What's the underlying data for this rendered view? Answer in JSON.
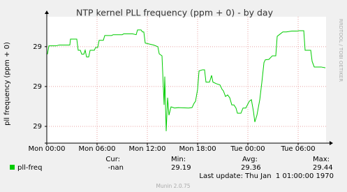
{
  "chart_data": {
    "type": "line",
    "title": "NTP kernel PLL frequency (ppm + 0) - by day",
    "y_label": "pll frequency (ppm + 0)",
    "watermark": "RRDTOOL / TOBI OETIKER",
    "x": [
      0.08,
      0.25,
      1.08,
      1.5,
      2.75,
      2.83,
      3.58,
      3.75,
      4,
      4.17,
      4.42,
      4.58,
      4.75,
      5,
      5.17,
      5.67,
      5.83,
      6.08,
      6.25,
      6.75,
      6.92,
      7.75,
      7.92,
      9,
      9.17,
      10.25,
      10.67,
      10.83,
      11.25,
      11.42,
      11.58,
      11.75,
      12.75,
      13.25,
      13.42,
      13.75,
      14,
      14.08,
      14.25,
      14.42,
      14.58,
      14.83,
      15.25,
      15.67,
      16.92,
      17.33,
      17.58,
      17.75,
      18,
      18.17,
      18.58,
      18.83,
      19,
      19.42,
      19.67,
      19.83,
      20.25,
      20.67,
      20.92,
      21.08,
      21.33,
      21.58,
      21.83,
      22.08,
      22.33,
      22.58,
      22.75,
      23.17,
      23.42,
      23.75,
      24.17,
      24.42,
      24.67,
      24.83,
      25.08,
      25.42,
      25.67,
      25.92,
      26.08,
      26.5,
      26.92,
      27.33,
      27.5,
      27.75,
      28.17,
      28.58,
      29.25,
      29.83,
      30.08,
      30.67,
      30.83,
      31.5,
      31.67,
      31.92,
      32.75,
      33.25
    ],
    "series": [
      {
        "name": "pll-freq",
        "color": "#00cc00",
        "values": [
          29.381,
          29.402,
          29.402,
          29.404,
          29.404,
          29.419,
          29.419,
          29.391,
          29.391,
          29.381,
          29.381,
          29.391,
          29.374,
          29.374,
          29.391,
          29.391,
          29.398,
          29.398,
          29.416,
          29.416,
          29.428,
          29.428,
          29.43,
          29.43,
          29.432,
          29.432,
          29.43,
          29.442,
          29.442,
          29.437,
          29.437,
          29.409,
          29.404,
          29.4,
          29.382,
          29.377,
          29.254,
          29.325,
          29.188,
          29.272,
          29.228,
          29.249,
          29.246,
          29.247,
          29.246,
          29.247,
          29.258,
          29.263,
          29.293,
          29.339,
          29.342,
          29.342,
          29.311,
          29.311,
          29.328,
          29.311,
          29.307,
          29.304,
          29.293,
          29.289,
          29.275,
          29.279,
          29.272,
          29.254,
          29.254,
          29.246,
          29.233,
          29.233,
          29.246,
          29.246,
          29.263,
          29.267,
          29.237,
          29.211,
          29.228,
          29.267,
          29.311,
          29.36,
          29.367,
          29.368,
          29.377,
          29.377,
          29.426,
          29.43,
          29.437,
          29.437,
          29.439,
          29.439,
          29.44,
          29.44,
          29.391,
          29.391,
          29.363,
          29.349,
          29.349,
          29.347
        ]
      }
    ],
    "xlim": [
      0,
      33.33
    ],
    "ylim": [
      29.158,
      29.475
    ],
    "xticks": [
      {
        "value": 0,
        "label": "Mon 00:00"
      },
      {
        "value": 6,
        "label": "Mon 06:00"
      },
      {
        "value": 12,
        "label": "Mon 12:00"
      },
      {
        "value": 18,
        "label": "Mon 18:00"
      },
      {
        "value": 24,
        "label": "Tue 00:00"
      },
      {
        "value": 30,
        "label": "Tue 06:00"
      }
    ],
    "yticks": [
      {
        "value": 29.2,
        "label": "29"
      },
      {
        "value": 29.3,
        "label": "29"
      },
      {
        "value": 29.4,
        "label": "29"
      }
    ],
    "grid": true,
    "stats": {
      "headers": [
        "Cur:",
        "Min:",
        "Avg:",
        "Max:"
      ],
      "values": [
        "-nan",
        "29.19",
        "29.36",
        "29.44"
      ]
    },
    "last_update": "Last update: Thu Jan  1 01:00:00 1970",
    "footer": "Munin 2.0.75"
  }
}
